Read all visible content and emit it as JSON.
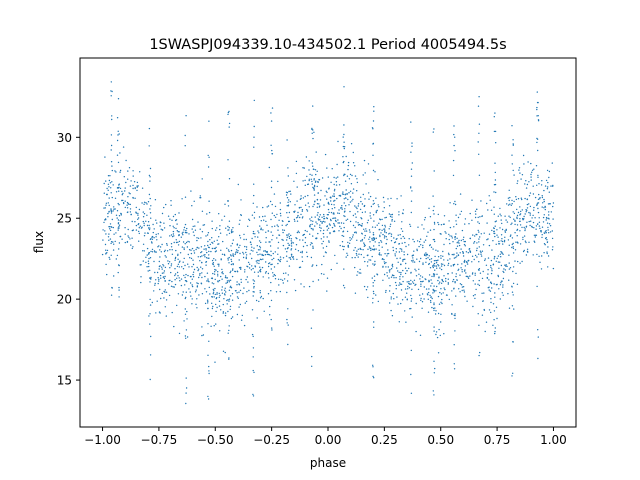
{
  "chart_data": {
    "type": "scatter",
    "title": "1SWASPJ094339.10-434502.1 Period 4005494.5s",
    "xlabel": "phase",
    "ylabel": "flux",
    "xlim": [
      -1.1,
      1.1
    ],
    "ylim": [
      12.1,
      34.9
    ],
    "xticks": [
      -1.0,
      -0.75,
      -0.5,
      -0.25,
      0.0,
      0.25,
      0.5,
      0.75,
      1.0
    ],
    "xtick_labels": [
      "−1.00",
      "−0.75",
      "−0.50",
      "−0.25",
      "0.00",
      "0.25",
      "0.50",
      "0.75",
      "1.00"
    ],
    "yticks": [
      15,
      20,
      25,
      30
    ],
    "ytick_labels": [
      "15",
      "20",
      "25",
      "30"
    ],
    "grid": false,
    "legend": "none",
    "marker_color": "#1f77b4",
    "series": [
      {
        "trend_phase": [
          0.0,
          0.05,
          0.1,
          0.15,
          0.2,
          0.25,
          0.3,
          0.35,
          0.4,
          0.45,
          0.5,
          0.55,
          0.6,
          0.65,
          0.7,
          0.75,
          0.8,
          0.85,
          0.9,
          0.95,
          1.0
        ],
        "trend_flux": [
          24.8,
          25.6,
          25.4,
          24.2,
          23.4,
          23.6,
          22.8,
          22.2,
          22.3,
          21.6,
          21.6,
          22.4,
          22.8,
          22.5,
          22.6,
          22.0,
          23.8,
          25.2,
          25.8,
          25.2,
          24.8
        ],
        "spread": [
          1.7,
          1.8,
          1.8,
          1.7,
          1.6,
          1.7,
          1.7,
          1.6,
          1.7,
          1.8,
          1.9,
          1.8,
          1.7,
          1.7,
          1.8,
          1.7,
          1.6,
          1.5,
          1.5,
          1.6,
          1.7
        ],
        "spikes": [
          {
            "phase": -0.96,
            "low": 20.0,
            "high": 33.5
          },
          {
            "phase": -0.93,
            "low": 19.5,
            "high": 33.2
          },
          {
            "phase": -0.79,
            "low": 15.0,
            "high": 32.6
          },
          {
            "phase": -0.63,
            "low": 13.1,
            "high": 32.3
          },
          {
            "phase": -0.53,
            "low": 13.5,
            "high": 31.0
          },
          {
            "phase": -0.44,
            "low": 15.3,
            "high": 32.5
          },
          {
            "phase": -0.33,
            "low": 14.0,
            "high": 33.2
          },
          {
            "phase": -0.25,
            "low": 17.2,
            "high": 32.7
          },
          {
            "phase": -0.18,
            "low": 13.2,
            "high": 31.5
          },
          {
            "phase": -0.07,
            "low": 15.0,
            "high": 32.8
          },
          {
            "phase": 0.07,
            "low": 20.5,
            "high": 33.2
          },
          {
            "phase": 0.2,
            "low": 15.1,
            "high": 32.6
          },
          {
            "phase": 0.37,
            "low": 13.2,
            "high": 32.2
          },
          {
            "phase": 0.47,
            "low": 13.5,
            "high": 31.2
          },
          {
            "phase": 0.56,
            "low": 15.2,
            "high": 32.5
          },
          {
            "phase": 0.67,
            "low": 14.0,
            "high": 33.3
          },
          {
            "phase": 0.74,
            "low": 17.5,
            "high": 32.8
          },
          {
            "phase": 0.82,
            "low": 13.3,
            "high": 31.5
          },
          {
            "phase": 0.93,
            "low": 15.2,
            "high": 32.8
          }
        ]
      }
    ]
  }
}
